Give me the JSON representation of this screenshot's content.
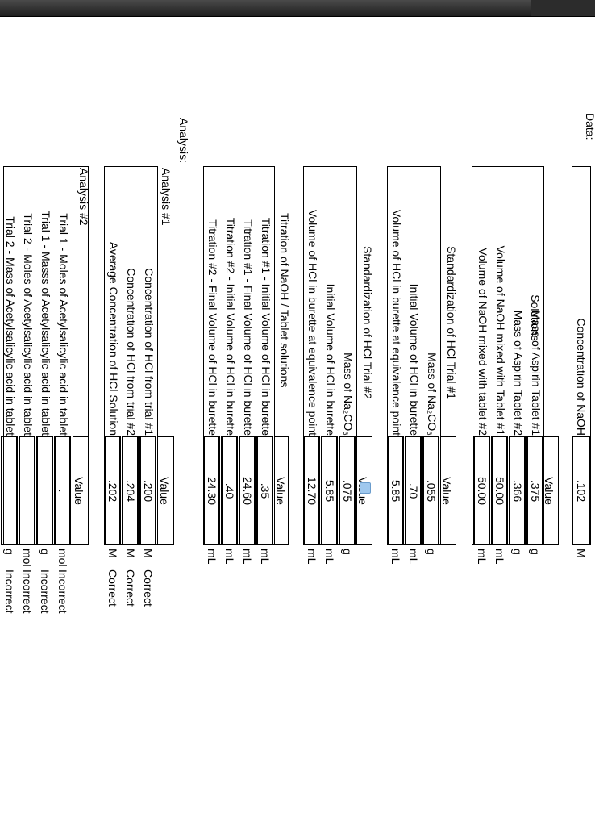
{
  "headings": {
    "data": "Data:",
    "analysis": "Analysis:"
  },
  "conc_naoh": {
    "label": "Concentration of NaOH",
    "value": ".102",
    "unit": "M"
  },
  "solutions": {
    "title": "Solutions",
    "value_header": "Value",
    "rows": [
      {
        "label": "Mass of Aspirin Tablet #1",
        "value": ".375",
        "unit": "g"
      },
      {
        "label": "Mass of Aspirin Tablet #2",
        "value": ".366",
        "unit": "g"
      },
      {
        "label": "Volume of NaOH mixed with Tablet #1",
        "value": "50.00",
        "unit": "mL"
      },
      {
        "label": "Volume of NaOH mixed with tablet #2",
        "value": "50.00",
        "unit": "mL"
      }
    ]
  },
  "std1": {
    "title": "Standardization of HCl Trial #1",
    "value_header": "Value",
    "rows": [
      {
        "label": "Mass of Na₂CO₃",
        "value": ".055",
        "unit": "g"
      },
      {
        "label": "Initial Volume of HCl in burette",
        "value": ".70",
        "unit": "mL"
      },
      {
        "label": "Volume of HCl in burette at equivalence point",
        "value": "5.85",
        "unit": "mL"
      }
    ]
  },
  "std2": {
    "title": "Standardization of HCl Trial #2",
    "value_header": "Value",
    "rows": [
      {
        "label": "Mass of Na₂CO₃",
        "value": ".075",
        "unit": "g"
      },
      {
        "label": "Initial Volume of HCl in burette",
        "value": "5.85",
        "unit": "mL"
      },
      {
        "label": "Volume of HCl in burette at equivalence point",
        "value": "12.70",
        "unit": "mL"
      }
    ]
  },
  "titration": {
    "title": "Titration of NaOH / Tablet solutions",
    "value_header": "Value",
    "rows": [
      {
        "label": "Titration #1 - Initial Volume of HCl in burette",
        "value": ".35",
        "unit": "mL"
      },
      {
        "label": "Titration #1 - Final Volume of HCl in burette",
        "value": "24.60",
        "unit": "mL"
      },
      {
        "label": "Titration #2 - Initial Volume of HCl in burette",
        "value": ".40",
        "unit": "mL"
      },
      {
        "label": "Titration #2 - Final Volume of HCl in burette",
        "value": "24.30",
        "unit": "mL"
      }
    ]
  },
  "analysis1": {
    "title": "Analysis #1",
    "value_header": "Value",
    "rows": [
      {
        "label": "Concentration of HCl from trial #1",
        "value": ".200",
        "unit": "M",
        "status": "Correct"
      },
      {
        "label": "Concentration of HCl from trial #2",
        "value": ".204",
        "unit": "M",
        "status": "Correct"
      },
      {
        "label": "Average Concentration of HCl Solution",
        "value": ".202",
        "unit": "M",
        "status": "Correct"
      }
    ]
  },
  "analysis2": {
    "title": "Analysis #2",
    "value_header": "Value",
    "rows": [
      {
        "label": "Trial 1 - Moles of Acetylsalicylic acid in tablet",
        "value": ".",
        "unit": "mol",
        "status": "Incorrect"
      },
      {
        "label": "Trial 1 - Masss of Acetylsalicylic acid in tablet",
        "value": "",
        "unit": "g",
        "status": "Incorrect"
      },
      {
        "label": "Trial 2 - Moles of Acetylsalicylic acid in tablet",
        "value": "",
        "unit": "mol",
        "status": "Incorrect"
      },
      {
        "label": "Trial 2 - Mass of Acetylsalicylic acid in tablet",
        "value": "",
        "unit": "g",
        "status": "Incorrect"
      }
    ]
  },
  "colors": {
    "topbar": "#2a2a2a",
    "cursor": "#9fc8ee"
  }
}
